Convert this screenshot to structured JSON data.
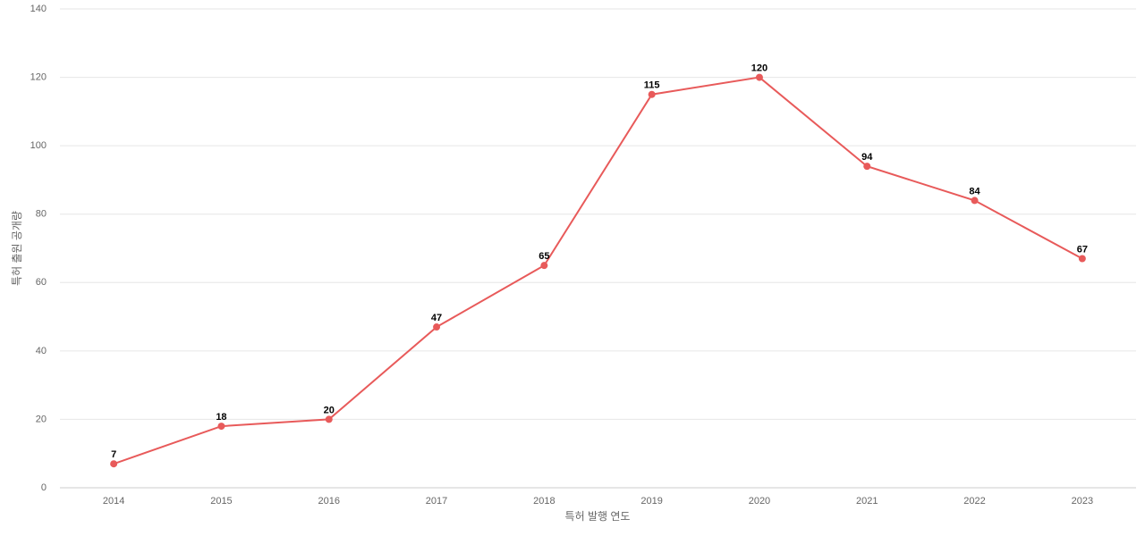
{
  "chart_data": {
    "type": "line",
    "x_label": "특허 발행 연도",
    "y_label": "특허 출원 공개량",
    "categories": [
      "2014",
      "2015",
      "2016",
      "2017",
      "2018",
      "2019",
      "2020",
      "2021",
      "2022",
      "2023"
    ],
    "values": [
      7,
      18,
      20,
      47,
      65,
      115,
      120,
      94,
      84,
      67
    ],
    "color": "#e85a5a",
    "ylim": [
      0,
      140
    ],
    "yticks": [
      0,
      20,
      40,
      60,
      80,
      100,
      120,
      140
    ],
    "grid": true
  }
}
